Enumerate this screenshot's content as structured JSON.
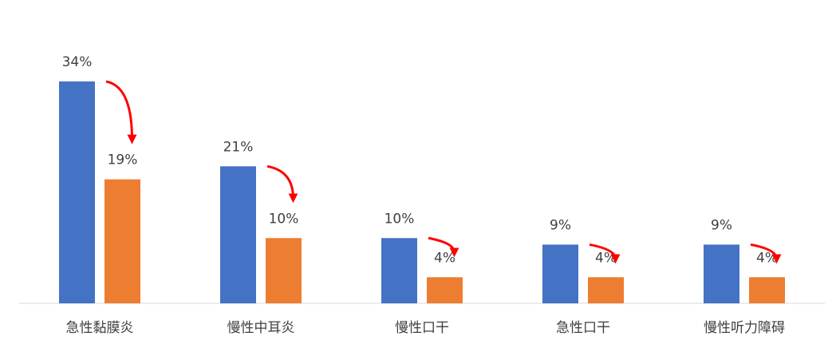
{
  "chart_data": {
    "type": "bar",
    "categories": [
      "急性黏膜炎",
      "慢性中耳炎",
      "慢性口干",
      "急性口干",
      "慢性听力障碍"
    ],
    "series": [
      {
        "color": "#4472c4",
        "values": [
          34,
          21,
          10,
          9,
          9
        ],
        "value_labels": [
          "34%",
          "21%",
          "10%",
          "9%",
          "9%"
        ]
      },
      {
        "color": "#ed7d31",
        "values": [
          19,
          10,
          4,
          4,
          4
        ],
        "value_labels": [
          "19%",
          "10%",
          "4%",
          "4%",
          "4%"
        ]
      }
    ],
    "ylim": [
      0,
      40
    ]
  }
}
